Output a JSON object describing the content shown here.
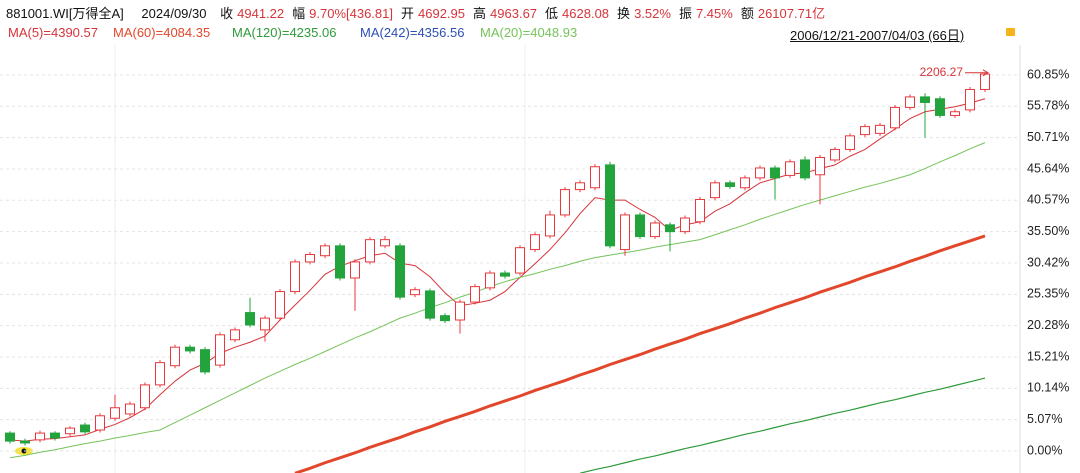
{
  "header": {
    "code": "881001.WI[万得全A]",
    "date": "2024/09/30",
    "quote": [
      {
        "key": "收",
        "value": "4941.22"
      },
      {
        "key": "幅",
        "value": "9.70%[436.81]"
      },
      {
        "key": "开",
        "value": "4692.95"
      },
      {
        "key": "高",
        "value": "4963.67"
      },
      {
        "key": "低",
        "value": "4628.08"
      },
      {
        "key": "换",
        "value": "3.52%"
      },
      {
        "key": "振",
        "value": "7.45%"
      },
      {
        "key": "额",
        "value": "26107.71亿"
      }
    ],
    "range": "2006/12/21-2007/04/03 (66日)"
  },
  "chart_data": {
    "type": "candlestick",
    "ylim": [
      -3.56,
      65.7
    ],
    "yticks": [
      {
        "value": 60.85,
        "label": "60.85%"
      },
      {
        "value": 55.78,
        "label": "55.78%"
      },
      {
        "value": 50.71,
        "label": "50.71%"
      },
      {
        "value": 45.64,
        "label": "45.64%"
      },
      {
        "value": 40.57,
        "label": "40.57%"
      },
      {
        "value": 35.5,
        "label": "35.50%"
      },
      {
        "value": 30.42,
        "label": "30.42%"
      },
      {
        "value": 25.35,
        "label": "25.35%"
      },
      {
        "value": 20.28,
        "label": "20.28%"
      },
      {
        "value": 15.21,
        "label": "15.21%"
      },
      {
        "value": 10.14,
        "label": "10.14%"
      },
      {
        "value": 5.07,
        "label": "5.07%"
      },
      {
        "value": 0,
        "label": "0.00%"
      }
    ],
    "grid": true,
    "up_color": "#e8383d",
    "down_color": "#22a33c",
    "open": [
      2.9,
      1.6,
      1.8,
      2.9,
      2.8,
      4.2,
      3.4,
      5.3,
      6.0,
      7.0,
      10.7,
      13.8,
      16.8,
      16.4,
      13.9,
      18.0,
      22.4,
      19.6,
      21.5,
      25.8,
      30.6,
      31.6,
      33.2,
      28.0,
      30.6,
      33.2,
      33.2,
      25.3,
      25.9,
      21.9,
      21.2,
      24.1,
      26.4,
      28.8,
      28.8,
      32.6,
      34.8,
      38.2,
      42.3,
      42.6,
      46.3,
      32.6,
      38.2,
      34.7,
      36.6,
      35.5,
      37.1,
      41.0,
      43.4,
      42.6,
      44.2,
      45.8,
      44.6,
      47.1,
      44.7,
      47.1,
      48.8,
      51.2,
      51.4,
      52.3,
      55.6,
      57.3,
      57.0,
      54.3,
      55.2,
      58.5
    ],
    "high": [
      3.2,
      2.0,
      3.3,
      3.2,
      4.0,
      4.6,
      6.1,
      9.1,
      8.0,
      11.1,
      14.7,
      17.2,
      17.2,
      16.8,
      19.2,
      20.0,
      24.8,
      21.9,
      26.2,
      31.0,
      32.2,
      33.6,
      33.6,
      31.0,
      34.6,
      34.8,
      33.6,
      26.5,
      26.3,
      22.3,
      24.5,
      27.0,
      29.2,
      29.2,
      33.3,
      35.4,
      38.9,
      42.7,
      43.8,
      46.4,
      46.8,
      38.6,
      38.6,
      37.3,
      37.0,
      38.1,
      41.1,
      43.8,
      43.8,
      44.6,
      46.2,
      46.2,
      47.2,
      47.7,
      47.9,
      49.2,
      51.4,
      52.9,
      53.1,
      56.0,
      57.7,
      57.9,
      57.4,
      55.3,
      58.9,
      61.2
    ],
    "low": [
      1.2,
      0.9,
      1.4,
      1.7,
      2.4,
      2.7,
      3.0,
      4.9,
      5.6,
      6.6,
      10.3,
      13.4,
      15.8,
      12.4,
      13.5,
      17.6,
      20.0,
      17.7,
      21.1,
      25.4,
      30.2,
      31.2,
      27.6,
      22.7,
      30.2,
      32.8,
      24.5,
      24.9,
      21.1,
      20.7,
      19.0,
      23.7,
      26.0,
      27.9,
      28.4,
      32.2,
      34.4,
      37.8,
      41.9,
      42.2,
      32.8,
      31.6,
      34.3,
      34.3,
      32.3,
      35.1,
      36.7,
      40.6,
      42.4,
      42.2,
      43.8,
      40.7,
      44.2,
      43.8,
      39.9,
      46.7,
      48.4,
      50.8,
      51.0,
      51.9,
      55.2,
      50.7,
      53.9,
      53.9,
      54.8,
      58.1
    ],
    "close": [
      1.6,
      1.3,
      2.9,
      2.1,
      3.7,
      3.1,
      5.7,
      7.0,
      7.6,
      10.7,
      14.3,
      16.8,
      16.2,
      12.8,
      18.8,
      19.6,
      20.4,
      21.5,
      25.8,
      30.6,
      31.8,
      33.2,
      28.0,
      30.6,
      34.2,
      34.2,
      24.9,
      26.1,
      21.5,
      21.1,
      24.1,
      26.6,
      28.8,
      28.3,
      32.9,
      35.0,
      38.2,
      42.3,
      43.4,
      46.0,
      33.2,
      38.2,
      34.7,
      36.9,
      35.5,
      37.7,
      40.7,
      43.4,
      42.8,
      44.2,
      45.8,
      44.2,
      46.8,
      44.2,
      47.5,
      48.8,
      51.0,
      52.5,
      52.7,
      55.6,
      57.3,
      56.4,
      54.3,
      54.9,
      58.5,
      61.0
    ],
    "annotation": "2206.27",
    "series": [
      {
        "name": "MA(5)=4390.57",
        "color": "#d7343a",
        "width": 1,
        "values": [
          1.8,
          1.6,
          1.9,
          2.0,
          2.3,
          2.6,
          3.5,
          4.3,
          5.4,
          6.8,
          9.1,
          11.3,
          13.1,
          14.2,
          15.8,
          16.8,
          17.6,
          18.6,
          21.2,
          23.6,
          26.0,
          28.6,
          29.9,
          30.8,
          31.6,
          32.0,
          30.4,
          30.0,
          28.2,
          25.6,
          23.5,
          23.9,
          24.4,
          25.8,
          28.1,
          30.3,
          32.6,
          35.3,
          38.4,
          41.0,
          40.6,
          40.6,
          39.1,
          37.8,
          35.7,
          36.6,
          37.1,
          38.8,
          40.0,
          41.8,
          43.4,
          44.1,
          44.8,
          45.0,
          45.7,
          46.3,
          47.7,
          48.8,
          50.5,
          52.1,
          53.8,
          54.9,
          55.3,
          55.7,
          56.3,
          57.0
        ]
      },
      {
        "name": "MA(60)=4084.35",
        "color": "#e2472b",
        "width": 3,
        "values": [
          null,
          null,
          null,
          null,
          null,
          null,
          null,
          null,
          null,
          null,
          null,
          null,
          null,
          null,
          null,
          null,
          null,
          null,
          null,
          -3.6,
          -2.8,
          -1.9,
          -1.1,
          -0.3,
          0.6,
          1.4,
          2.2,
          3.1,
          3.9,
          4.8,
          5.6,
          6.4,
          7.3,
          8.1,
          8.9,
          9.8,
          10.6,
          11.4,
          12.3,
          13.1,
          14.0,
          14.8,
          15.6,
          16.5,
          17.3,
          18.1,
          19.0,
          19.8,
          20.6,
          21.5,
          22.3,
          23.2,
          24.0,
          24.8,
          25.7,
          26.5,
          27.3,
          28.2,
          29.0,
          29.8,
          30.7,
          31.5,
          32.4,
          33.2,
          34.0,
          34.8
        ]
      },
      {
        "name": "MA(120)=4235.06",
        "color": "#2e9a3a",
        "width": 1.2,
        "values": [
          null,
          null,
          null,
          null,
          null,
          null,
          null,
          null,
          null,
          null,
          null,
          null,
          null,
          null,
          null,
          null,
          null,
          null,
          null,
          null,
          null,
          null,
          null,
          null,
          null,
          null,
          null,
          null,
          null,
          null,
          null,
          null,
          null,
          null,
          null,
          null,
          null,
          null,
          -3.6,
          -3.0,
          -2.5,
          -1.9,
          -1.3,
          -0.8,
          -0.2,
          0.4,
          0.9,
          1.5,
          2.1,
          2.7,
          3.2,
          3.8,
          4.4,
          4.9,
          5.5,
          6.1,
          6.6,
          7.2,
          7.8,
          8.3,
          8.9,
          9.5,
          10.0,
          10.6,
          11.2,
          11.8
        ]
      },
      {
        "name": "MA(242)=4356.56",
        "color": "#2d4fb5",
        "width": 1,
        "values": [
          null,
          null,
          null,
          null,
          null,
          null,
          null,
          null,
          null,
          null,
          null,
          null,
          null,
          null,
          null,
          null,
          null,
          null,
          null,
          null,
          null,
          null,
          null,
          null,
          null,
          null,
          null,
          null,
          null,
          null,
          null,
          null,
          null,
          null,
          null,
          null,
          null,
          null,
          null,
          null,
          null,
          null,
          null,
          null,
          null,
          null,
          null,
          null,
          null,
          null,
          null,
          null,
          null,
          null,
          null,
          null,
          null,
          null,
          null,
          null,
          null,
          null,
          null,
          null,
          null,
          null
        ]
      },
      {
        "name": "MA(20)=4048.93",
        "color": "#76c35a",
        "width": 1,
        "values": [
          -1.1,
          -0.7,
          -0.2,
          0.2,
          0.7,
          1.2,
          1.6,
          2.1,
          2.5,
          3.0,
          3.4,
          4.6,
          5.8,
          7.0,
          8.2,
          9.4,
          10.6,
          11.8,
          12.9,
          14.0,
          15.0,
          16.1,
          17.2,
          18.3,
          19.3,
          20.4,
          21.5,
          22.3,
          23.2,
          24.0,
          24.9,
          25.7,
          26.6,
          27.4,
          28.1,
          28.7,
          29.4,
          30.0,
          30.7,
          31.3,
          31.7,
          32.1,
          32.5,
          33.0,
          33.4,
          33.8,
          34.2,
          35.0,
          35.8,
          36.6,
          37.5,
          38.3,
          39.1,
          39.9,
          40.6,
          41.3,
          42.0,
          42.7,
          43.3,
          44.0,
          44.7,
          45.7,
          46.8,
          47.8,
          48.9,
          49.9
        ]
      }
    ]
  }
}
